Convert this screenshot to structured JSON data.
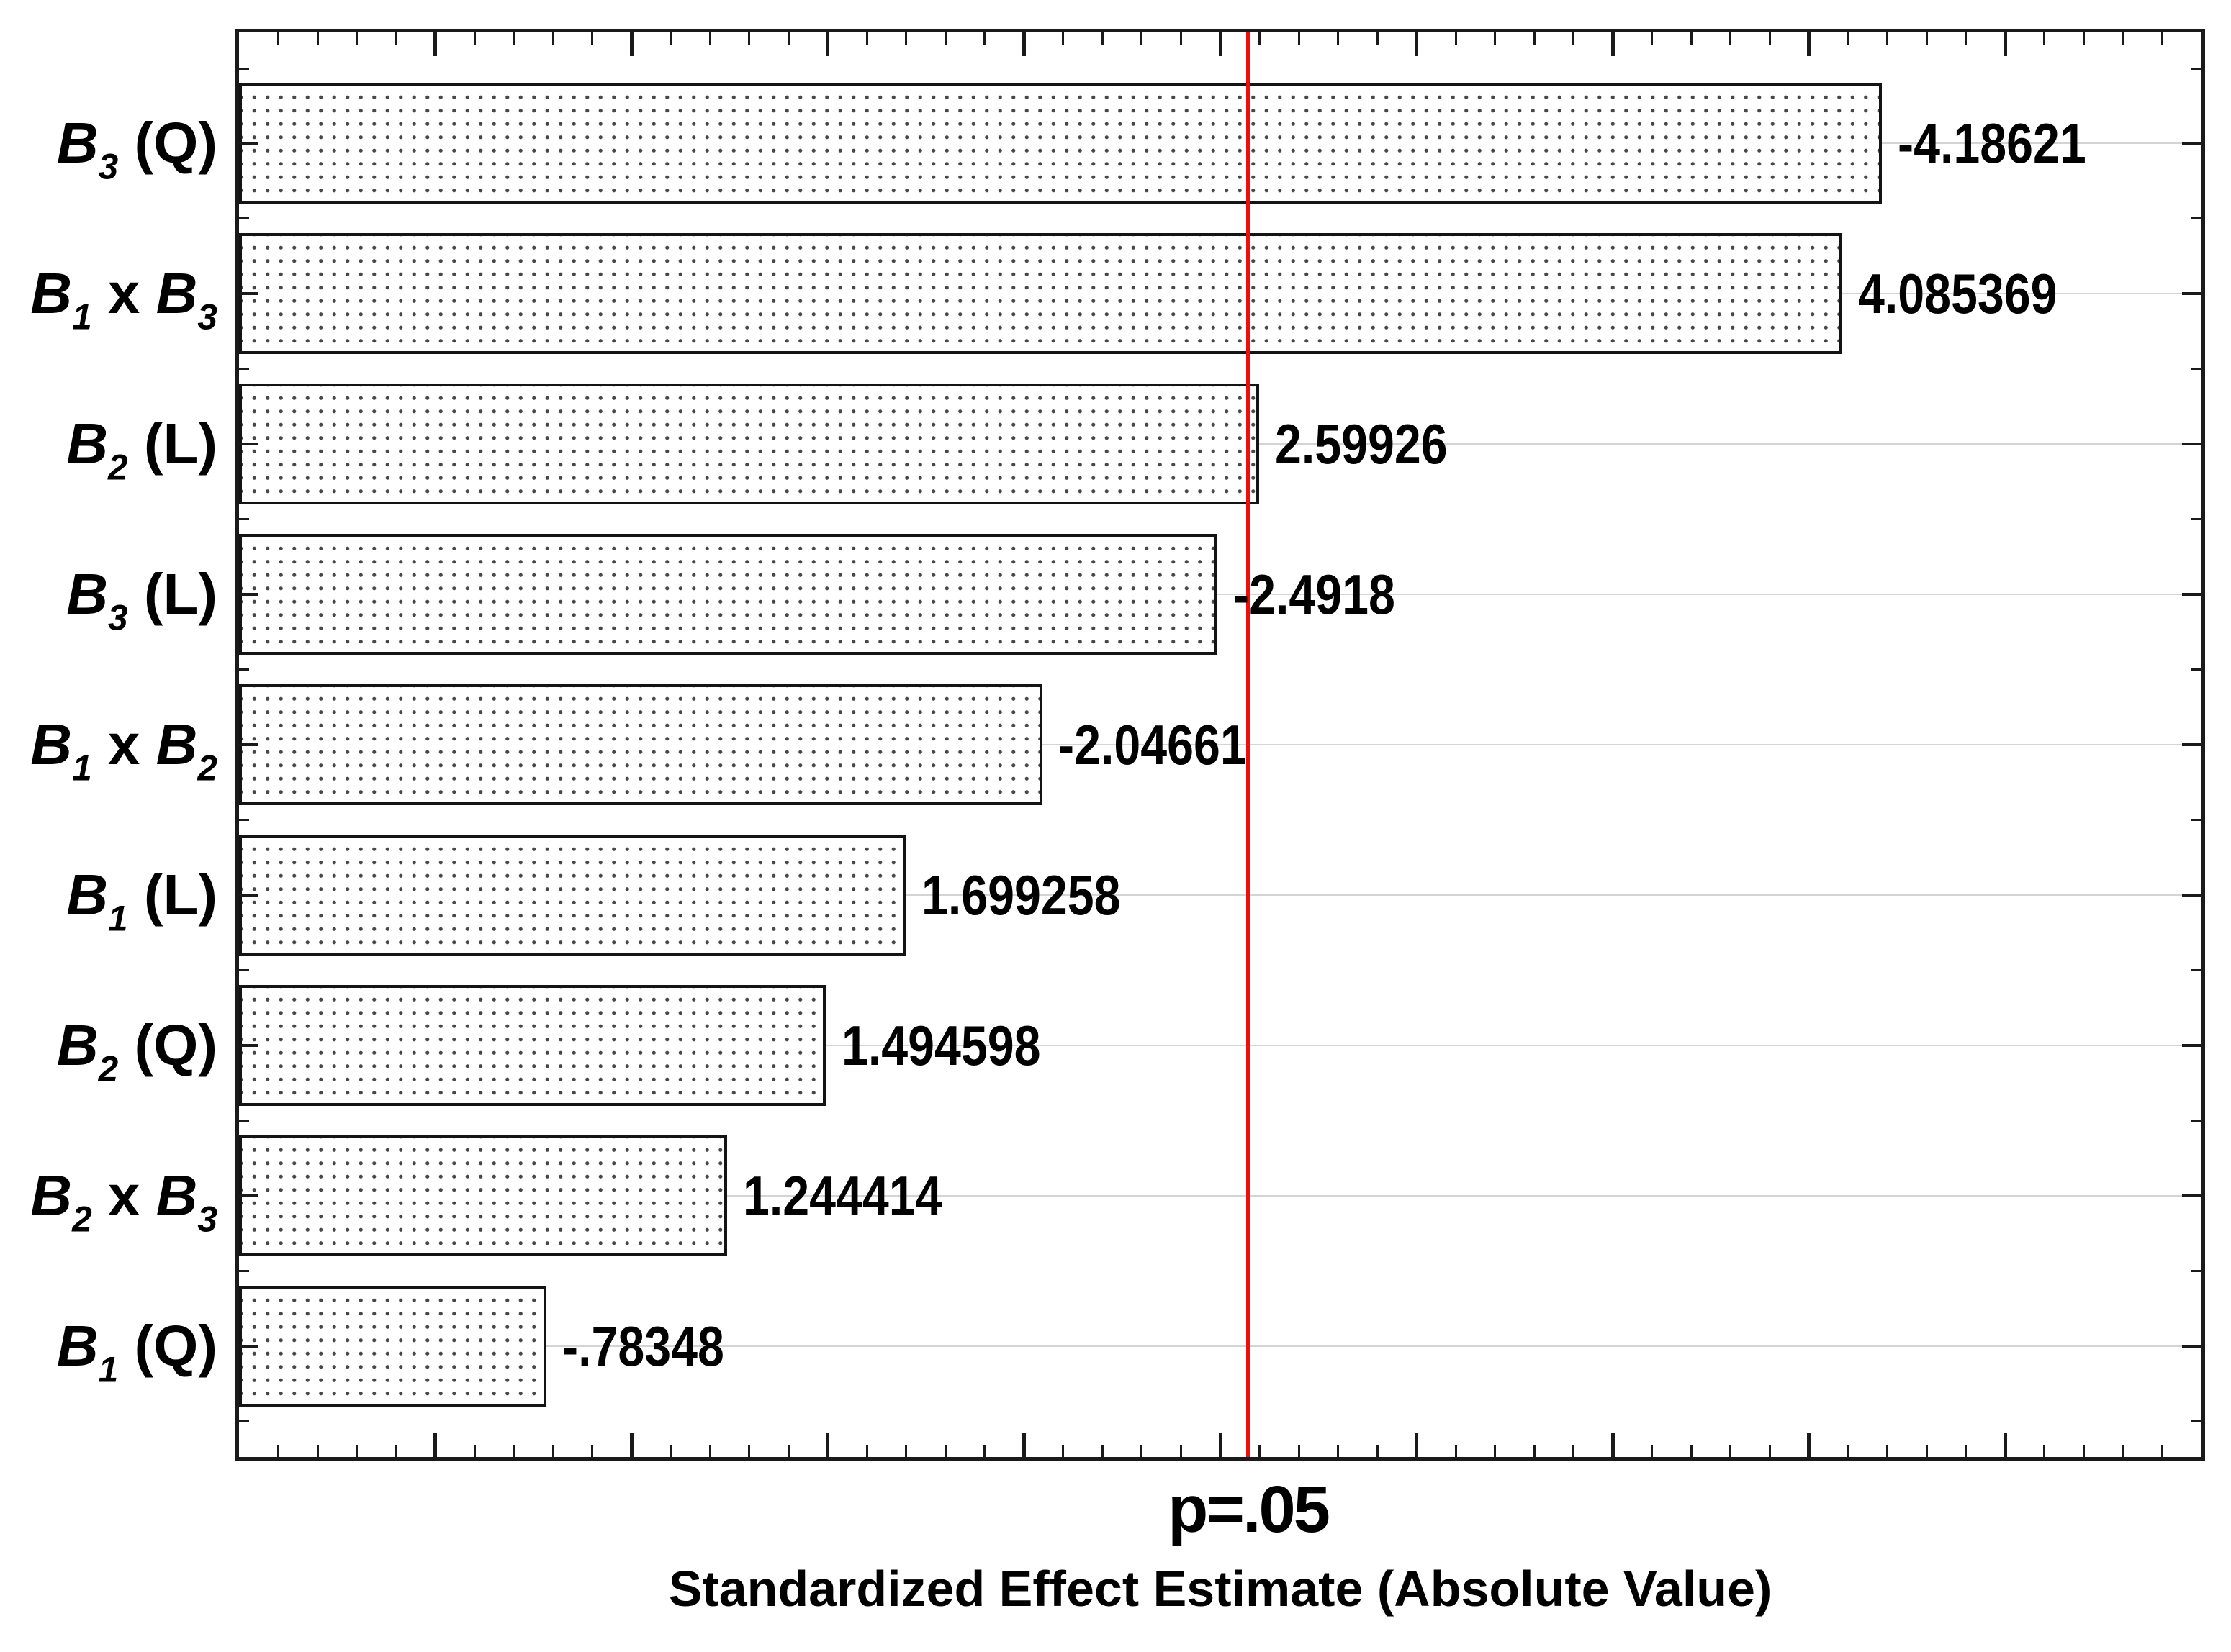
{
  "chart_data": {
    "type": "bar",
    "orientation": "horizontal",
    "title": "",
    "xlabel": "Standardized Effect Estimate (Absolute Value)",
    "ylabel": "",
    "categories": [
      "B3 (Q)",
      "B1 x B3",
      "B2 (L)",
      "B3 (L)",
      "B1 x B2",
      "B1 (L)",
      "B2 (Q)",
      "B2 x B3",
      "B1 (Q)"
    ],
    "category_parts": [
      [
        {
          "v": "B",
          "sub": "3"
        },
        {
          "t": " (Q)"
        }
      ],
      [
        {
          "v": "B",
          "sub": "1"
        },
        {
          "t": " x "
        },
        {
          "v": "B",
          "sub": "3"
        }
      ],
      [
        {
          "v": "B",
          "sub": "2"
        },
        {
          "t": " (L)"
        }
      ],
      [
        {
          "v": "B",
          "sub": "3"
        },
        {
          "t": " (L)"
        }
      ],
      [
        {
          "v": "B",
          "sub": "1"
        },
        {
          "t": " x "
        },
        {
          "v": "B",
          "sub": "2"
        }
      ],
      [
        {
          "v": "B",
          "sub": "1"
        },
        {
          "t": " (L)"
        }
      ],
      [
        {
          "v": "B",
          "sub": "2"
        },
        {
          "t": " (Q)"
        }
      ],
      [
        {
          "v": "B",
          "sub": "2"
        },
        {
          "t": " x "
        },
        {
          "v": "B",
          "sub": "3"
        }
      ],
      [
        {
          "v": "B",
          "sub": "1"
        },
        {
          "t": " (Q)"
        }
      ]
    ],
    "values": [
      -4.18621,
      4.085369,
      2.59926,
      -2.4918,
      -2.04661,
      1.699258,
      1.494598,
      1.244414,
      -0.78348
    ],
    "value_labels": [
      "-4.18621",
      "4.085369",
      "2.59926",
      "-2.4918",
      "-2.04661",
      "1.699258",
      "1.494598",
      "1.244414",
      "-.78348"
    ],
    "xlim": [
      0,
      5
    ],
    "x_major_tick_step": 0.5,
    "x_minor_tick_step": 0.1,
    "grid": "horizontal gridlines at each category center",
    "legend": null,
    "reference_line": {
      "x": 2.5706,
      "label": "p=.05"
    },
    "bar_style": {
      "fill": "white",
      "pattern": "dot-grid",
      "border": "black"
    }
  },
  "colors": {
    "frame": "#1a1a1a",
    "bar_border": "#141414",
    "bar_fill": "#ffffff",
    "dot": "#474747",
    "gridline": "#d4d4d4",
    "reference_line": "#f20d0d",
    "text": "#000000",
    "background": "#ffffff"
  }
}
